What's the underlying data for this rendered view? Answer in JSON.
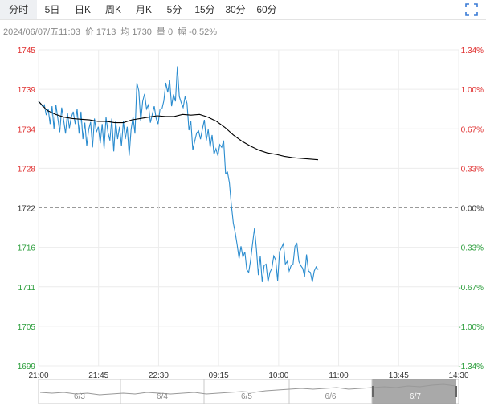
{
  "tabs": [
    {
      "label": "分时",
      "active": true
    },
    {
      "label": "5日",
      "active": false
    },
    {
      "label": "日K",
      "active": false
    },
    {
      "label": "周K",
      "active": false
    },
    {
      "label": "月K",
      "active": false
    },
    {
      "label": "5分",
      "active": false
    },
    {
      "label": "15分",
      "active": false
    },
    {
      "label": "30分",
      "active": false
    },
    {
      "label": "60分",
      "active": false
    }
  ],
  "info_bar": {
    "datetime": "2024/06/07/五11:03",
    "price": "价 1713",
    "avg": "均 1730",
    "volume": "量 0",
    "change": "幅 -0.52%"
  },
  "colors": {
    "price_line": "#2a8ccf",
    "avg_line": "#000000",
    "up_text": "#e03131",
    "down_text": "#2a9d3a",
    "neutral_text": "#333333"
  },
  "chart_data": {
    "type": "line",
    "title": "",
    "reference_price": 1722,
    "ylim": [
      1699,
      1745
    ],
    "y_ticks_left": [
      "1745",
      "1739",
      "1734",
      "1728",
      "1722",
      "1716",
      "1711",
      "1705",
      "1699"
    ],
    "y_ticks_right": [
      "1.34%",
      "1.00%",
      "0.67%",
      "0.33%",
      "0.00%",
      "-0.33%",
      "-0.67%",
      "-1.00%",
      "-1.34%"
    ],
    "x_ticks": [
      "21:00",
      "21:45",
      "22:30",
      "09:15",
      "10:00",
      "11:00",
      "13:45",
      "14:30"
    ],
    "series": [
      {
        "values": [
          1737.5,
          1737.2,
          1736.8,
          1737.0,
          1735.5,
          1736.4,
          1734.2,
          1736.8,
          1733.5,
          1737.0,
          1735.0,
          1733.0,
          1736.6,
          1734.8,
          1732.8,
          1735.8,
          1733.6,
          1735.2,
          1736.0,
          1734.2,
          1736.4,
          1732.8,
          1736.0,
          1732.0,
          1734.4,
          1731.0,
          1733.4,
          1734.5,
          1730.8,
          1735.0,
          1733.0,
          1733.8,
          1731.4,
          1734.2,
          1730.6,
          1735.2,
          1733.0,
          1731.8,
          1735.0,
          1730.2,
          1734.6,
          1732.0,
          1733.8,
          1731.0,
          1734.6,
          1732.0,
          1733.8,
          1729.6,
          1733.4,
          1735.2,
          1732.8,
          1740.2,
          1739.0,
          1734.6,
          1737.5,
          1738.6,
          1736.4,
          1737.0,
          1734.4,
          1735.6,
          1736.8,
          1735.0,
          1734.2,
          1736.4,
          1736.4,
          1737.6,
          1740.2,
          1738.8,
          1740.6,
          1736.8,
          1738.5,
          1737.5,
          1742.6,
          1738.2,
          1737.3,
          1736.6,
          1738.2,
          1737.2,
          1733.3,
          1734.6,
          1730.4,
          1731.7,
          1732.9,
          1733.2,
          1732.0,
          1733.5,
          1734.8,
          1731.8,
          1733.4,
          1730.8,
          1732.6,
          1729.8,
          1730.6,
          1729.6,
          1731.2,
          1730.8,
          1731.8,
          1727.0,
          1727.2,
          1725.6,
          1722.4,
          1719.8,
          1718.4,
          1716.6,
          1714.6,
          1716.4,
          1714.8,
          1715.6,
          1713.0,
          1712.6,
          1714.4,
          1716.8,
          1719.0,
          1716.0,
          1712.2,
          1715.0,
          1711.2,
          1713.6,
          1713.8,
          1711.2,
          1712.6,
          1713.2,
          1715.0,
          1714.4,
          1711.4,
          1715.6,
          1716.2,
          1716.8,
          1713.8,
          1714.2,
          1712.8,
          1713.6,
          1713.8,
          1716.4,
          1716.8,
          1714.2,
          1713.6,
          1713.2,
          1712.0,
          1715.2,
          1712.8,
          1712.6,
          1711.2,
          1712.8,
          1713.4,
          1713.0
        ],
        "avg_values": [
          1737.5,
          1736.2,
          1735.6,
          1735.2,
          1735.0,
          1734.9,
          1734.8,
          1734.6,
          1734.6,
          1734.4,
          1734.4,
          1734.8,
          1735.0,
          1735.2,
          1735.4,
          1735.3,
          1735.3,
          1735.6,
          1735.5,
          1735.6,
          1735.2,
          1734.6,
          1733.7,
          1732.6,
          1731.7,
          1731.0,
          1730.4,
          1730.0,
          1729.8,
          1729.5,
          1729.3,
          1729.2,
          1729.1,
          1729.0
        ]
      }
    ]
  },
  "navigator": {
    "labels": [
      "6/3",
      "6/4",
      "6/5",
      "6/6",
      "6/7"
    ]
  }
}
